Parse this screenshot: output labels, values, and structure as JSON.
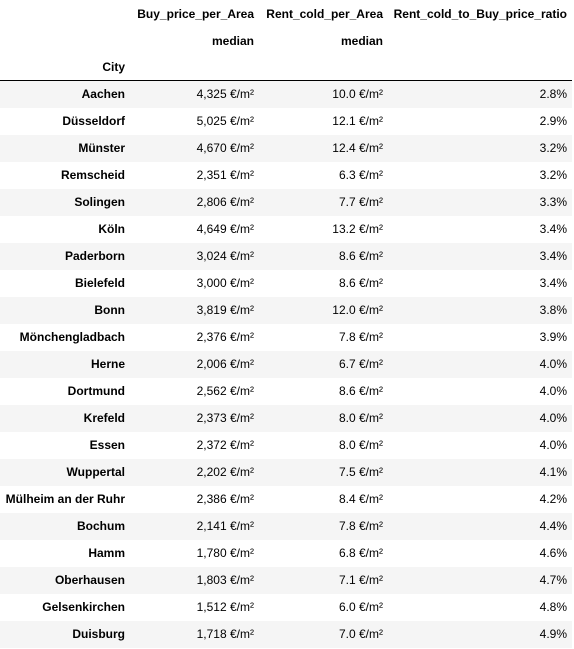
{
  "table": {
    "column_headers": [
      "Buy_price_per_Area",
      "Rent_cold_per_Area",
      "Rent_cold_to_Buy_price_ratio"
    ],
    "sub_headers": [
      "median",
      "median",
      ""
    ],
    "index_name": "City",
    "rows": [
      {
        "city": "Aachen",
        "buy": "4,325 €/m²",
        "rent": "10.0 €/m²",
        "ratio": "2.8%"
      },
      {
        "city": "Düsseldorf",
        "buy": "5,025 €/m²",
        "rent": "12.1 €/m²",
        "ratio": "2.9%"
      },
      {
        "city": "Münster",
        "buy": "4,670 €/m²",
        "rent": "12.4 €/m²",
        "ratio": "3.2%"
      },
      {
        "city": "Remscheid",
        "buy": "2,351 €/m²",
        "rent": "6.3 €/m²",
        "ratio": "3.2%"
      },
      {
        "city": "Solingen",
        "buy": "2,806 €/m²",
        "rent": "7.7 €/m²",
        "ratio": "3.3%"
      },
      {
        "city": "Köln",
        "buy": "4,649 €/m²",
        "rent": "13.2 €/m²",
        "ratio": "3.4%"
      },
      {
        "city": "Paderborn",
        "buy": "3,024 €/m²",
        "rent": "8.6 €/m²",
        "ratio": "3.4%"
      },
      {
        "city": "Bielefeld",
        "buy": "3,000 €/m²",
        "rent": "8.6 €/m²",
        "ratio": "3.4%"
      },
      {
        "city": "Bonn",
        "buy": "3,819 €/m²",
        "rent": "12.0 €/m²",
        "ratio": "3.8%"
      },
      {
        "city": "Mönchengladbach",
        "buy": "2,376 €/m²",
        "rent": "7.8 €/m²",
        "ratio": "3.9%"
      },
      {
        "city": "Herne",
        "buy": "2,006 €/m²",
        "rent": "6.7 €/m²",
        "ratio": "4.0%"
      },
      {
        "city": "Dortmund",
        "buy": "2,562 €/m²",
        "rent": "8.6 €/m²",
        "ratio": "4.0%"
      },
      {
        "city": "Krefeld",
        "buy": "2,373 €/m²",
        "rent": "8.0 €/m²",
        "ratio": "4.0%"
      },
      {
        "city": "Essen",
        "buy": "2,372 €/m²",
        "rent": "8.0 €/m²",
        "ratio": "4.0%"
      },
      {
        "city": "Wuppertal",
        "buy": "2,202 €/m²",
        "rent": "7.5 €/m²",
        "ratio": "4.1%"
      },
      {
        "city": "Mülheim an der Ruhr",
        "buy": "2,386 €/m²",
        "rent": "8.4 €/m²",
        "ratio": "4.2%"
      },
      {
        "city": "Bochum",
        "buy": "2,141 €/m²",
        "rent": "7.8 €/m²",
        "ratio": "4.4%"
      },
      {
        "city": "Hamm",
        "buy": "1,780 €/m²",
        "rent": "6.8 €/m²",
        "ratio": "4.6%"
      },
      {
        "city": "Oberhausen",
        "buy": "1,803 €/m²",
        "rent": "7.1 €/m²",
        "ratio": "4.7%"
      },
      {
        "city": "Gelsenkirchen",
        "buy": "1,512 €/m²",
        "rent": "6.0 €/m²",
        "ratio": "4.8%"
      },
      {
        "city": "Duisburg",
        "buy": "1,718 €/m²",
        "rent": "7.0 €/m²",
        "ratio": "4.9%"
      }
    ]
  },
  "colors": {
    "stripe": "#f5f5f5",
    "background": "#ffffff",
    "text": "#000000"
  }
}
